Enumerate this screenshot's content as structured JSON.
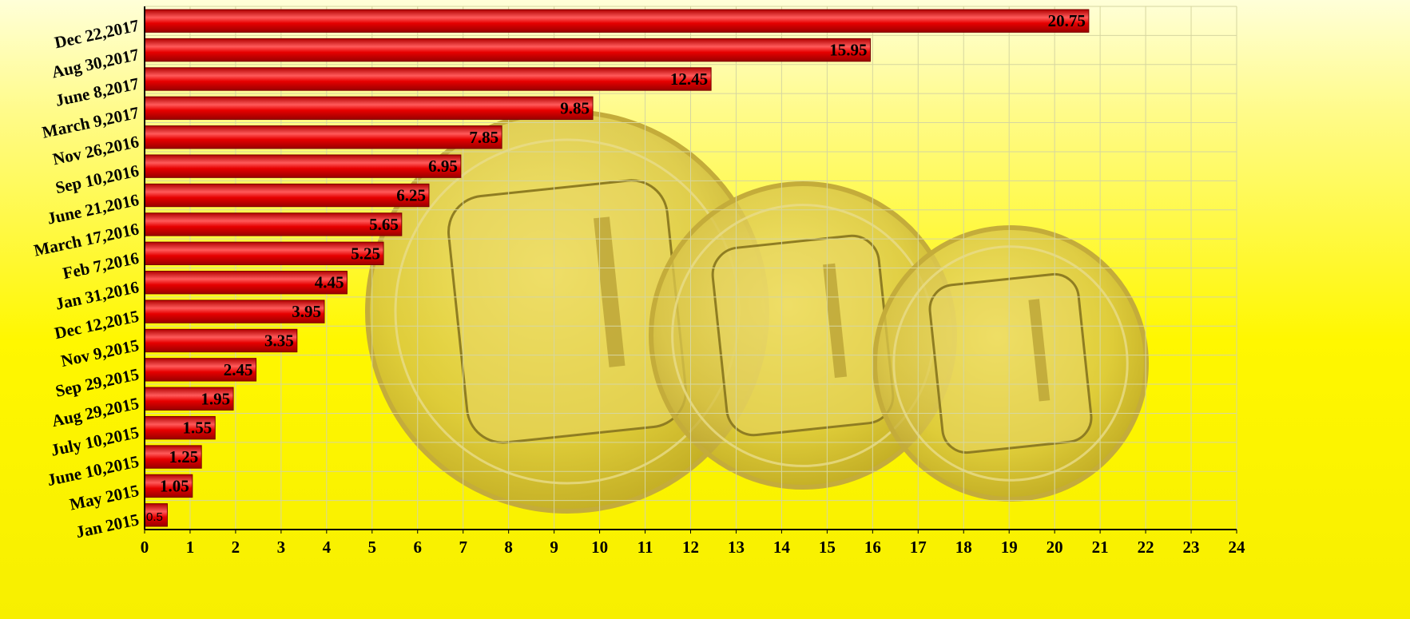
{
  "chart_data": {
    "type": "bar",
    "orientation": "horizontal",
    "categories": [
      "Jan 2015",
      "May 2015",
      "June 10,2015",
      "July 10,2015",
      "Aug 29,2015",
      "Sep 29,2015",
      "Nov 9,2015",
      "Dec 12,2015",
      "Jan 31,2016",
      "Feb 7,2016",
      "March 17,2016",
      "June 21,2016",
      "Sep 10,2016",
      "Nov 26,2016",
      "March 9,2017",
      "June 8,2017",
      "Aug 30,2017",
      "Dec 22,2017"
    ],
    "values": [
      0.5,
      1.05,
      1.25,
      1.55,
      1.95,
      2.45,
      3.35,
      3.95,
      4.45,
      5.25,
      5.65,
      6.25,
      6.95,
      7.85,
      9.85,
      12.45,
      15.95,
      20.75
    ],
    "value_labels": [
      "0.5",
      "1.05",
      "1.25",
      "1.55",
      "1.95",
      "2.45",
      "3.35",
      "3.95",
      "4.45",
      "5.25",
      "5.65",
      "6.25",
      "6.95",
      "7.85",
      "9.85",
      "12.45",
      "15.95",
      "20.75"
    ],
    "xticks": [
      "0",
      "1",
      "2",
      "3",
      "4",
      "5",
      "6",
      "7",
      "8",
      "9",
      "10",
      "11",
      "12",
      "13",
      "14",
      "15",
      "16",
      "17",
      "18",
      "19",
      "20",
      "21",
      "22",
      "23",
      "24"
    ],
    "xlim": [
      0,
      24
    ],
    "grid": true,
    "title": "",
    "xlabel": "",
    "ylabel": "",
    "colors": {
      "bar": "#e60000",
      "bar_highlight": "#ff6b6b",
      "background": "#fff700",
      "grid": "#d6d6a0",
      "coin": "#d8c24a"
    }
  }
}
